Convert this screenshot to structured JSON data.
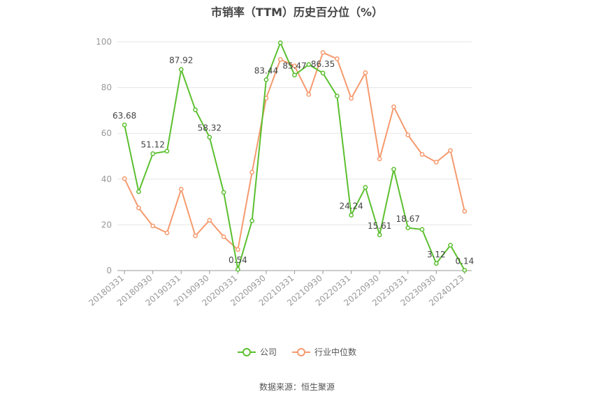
{
  "chart_data": {
    "type": "line",
    "title": "市销率（TTM）历史百分位（%）",
    "source": "数据来源：恒生聚源",
    "ylim": [
      0,
      100
    ],
    "yticks": [
      "0",
      "20",
      "40",
      "60",
      "80",
      "100"
    ],
    "legend_position": "bottom",
    "grid": true,
    "x": [
      "20180331",
      "20180630",
      "20180930",
      "20181231",
      "20190331",
      "20190630",
      "20190930",
      "20191231",
      "20200331",
      "20200630",
      "20200930",
      "20201231",
      "20210331",
      "20210630",
      "20210930",
      "20211231",
      "20220331",
      "20220630",
      "20220930",
      "20221231",
      "20230331",
      "20230630",
      "20230930",
      "20231231",
      "20240123"
    ],
    "xtick_labels": [
      "20180331",
      "20180930",
      "20190331",
      "20190930",
      "20200331",
      "20200930",
      "20210331",
      "20210930",
      "20220331",
      "20220930",
      "20230331",
      "20230930",
      "20240123"
    ],
    "series": [
      {
        "name": "公司",
        "color": "#5bbf2f",
        "values": [
          63.68,
          34.5,
          51.12,
          52.2,
          87.92,
          70.3,
          58.32,
          34.2,
          0.54,
          21.8,
          83.44,
          99.6,
          85.47,
          90.1,
          86.35,
          76.3,
          24.24,
          36.4,
          15.61,
          44.3,
          18.67,
          18.0,
          3.12,
          11.1,
          0.14
        ],
        "labels": [
          "63.68",
          "",
          "51.12",
          "",
          "87.92",
          "",
          "58.32",
          "",
          "0.54",
          "",
          "83.44",
          "",
          "85.47",
          "",
          "86.35",
          "",
          "24.24",
          "",
          "15.61",
          "",
          "18.67",
          "",
          "3.12",
          "",
          "0.14"
        ]
      },
      {
        "name": "行业中位数",
        "color": "#f59a6e",
        "values": [
          40.2,
          27.4,
          19.5,
          16.5,
          35.6,
          15.2,
          22.0,
          14.8,
          9.2,
          43.0,
          75.4,
          92.3,
          89.5,
          77.0,
          95.3,
          92.6,
          75.3,
          86.5,
          48.8,
          71.6,
          59.3,
          50.8,
          47.4,
          52.5,
          25.9
        ]
      }
    ]
  }
}
